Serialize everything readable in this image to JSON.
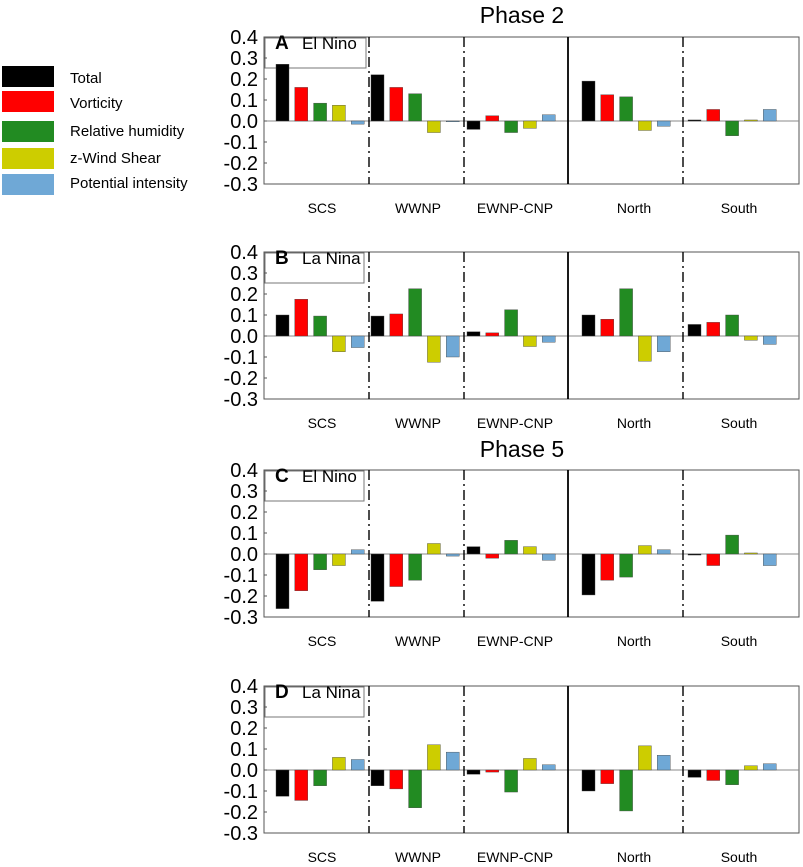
{
  "figure": {
    "phase_titles": [
      "Phase 2",
      "Phase 5"
    ]
  },
  "legend": {
    "items": [
      {
        "label": "Total",
        "color": "#000000"
      },
      {
        "label": "Vorticity",
        "color": "#ff0000"
      },
      {
        "label": "Relative humidity",
        "color": "#228b22"
      },
      {
        "label": "z-Wind Shear",
        "color": "#cdcd00"
      },
      {
        "label": "Potential intensity",
        "color": "#6fa8d6"
      }
    ]
  },
  "chart_data": [
    {
      "type": "bar",
      "panel": "A",
      "title": "El Nino",
      "phase": "Phase 2",
      "categories": [
        "SCS",
        "WWNP",
        "EWNP-CNP",
        "North",
        "South"
      ],
      "ylim": [
        -0.3,
        0.4
      ],
      "yticks": [
        "0.4",
        "0.3",
        "0.2",
        "0.1",
        "0.0",
        "-0.1",
        "-0.2",
        "-0.3"
      ],
      "series": [
        {
          "name": "Total",
          "values": [
            0.27,
            0.22,
            -0.04,
            0.19,
            0.005
          ]
        },
        {
          "name": "Vorticity",
          "values": [
            0.16,
            0.16,
            0.025,
            0.125,
            0.055
          ]
        },
        {
          "name": "Relative humidity",
          "values": [
            0.085,
            0.13,
            -0.055,
            0.115,
            -0.07
          ]
        },
        {
          "name": "z-Wind Shear",
          "values": [
            0.075,
            -0.055,
            -0.035,
            -0.045,
            0.005
          ]
        },
        {
          "name": "Potential intensity",
          "values": [
            -0.015,
            0.0,
            0.03,
            -0.025,
            0.055
          ]
        }
      ]
    },
    {
      "type": "bar",
      "panel": "B",
      "title": "La Nina",
      "phase": "Phase 2",
      "categories": [
        "SCS",
        "WWNP",
        "EWNP-CNP",
        "North",
        "South"
      ],
      "ylim": [
        -0.3,
        0.4
      ],
      "yticks": [
        "0.4",
        "0.3",
        "0.2",
        "0.1",
        "0.0",
        "-0.1",
        "-0.2",
        "-0.3"
      ],
      "series": [
        {
          "name": "Total",
          "values": [
            0.1,
            0.095,
            0.02,
            0.1,
            0.055
          ]
        },
        {
          "name": "Vorticity",
          "values": [
            0.175,
            0.105,
            0.015,
            0.08,
            0.065
          ]
        },
        {
          "name": "Relative humidity",
          "values": [
            0.095,
            0.225,
            0.125,
            0.225,
            0.1
          ]
        },
        {
          "name": "z-Wind Shear",
          "values": [
            -0.075,
            -0.125,
            -0.05,
            -0.12,
            -0.02
          ]
        },
        {
          "name": "Potential intensity",
          "values": [
            -0.055,
            -0.1,
            -0.03,
            -0.075,
            -0.04
          ]
        }
      ]
    },
    {
      "type": "bar",
      "panel": "C",
      "title": "El Nino",
      "phase": "Phase 5",
      "categories": [
        "SCS",
        "WWNP",
        "EWNP-CNP",
        "North",
        "South"
      ],
      "ylim": [
        -0.3,
        0.4
      ],
      "yticks": [
        "0.4",
        "0.3",
        "0.2",
        "0.1",
        "0.0",
        "-0.1",
        "-0.2",
        "-0.3"
      ],
      "series": [
        {
          "name": "Total",
          "values": [
            -0.26,
            -0.225,
            0.035,
            -0.195,
            -0.005
          ]
        },
        {
          "name": "Vorticity",
          "values": [
            -0.175,
            -0.155,
            -0.02,
            -0.125,
            -0.055
          ]
        },
        {
          "name": "Relative humidity",
          "values": [
            -0.075,
            -0.125,
            0.065,
            -0.11,
            0.09
          ]
        },
        {
          "name": "z-Wind Shear",
          "values": [
            -0.055,
            0.05,
            0.035,
            0.04,
            0.005
          ]
        },
        {
          "name": "Potential intensity",
          "values": [
            0.02,
            -0.01,
            -0.03,
            0.02,
            -0.055
          ]
        }
      ]
    },
    {
      "type": "bar",
      "panel": "D",
      "title": "La Nina",
      "phase": "Phase 5",
      "categories": [
        "SCS",
        "WWNP",
        "EWNP-CNP",
        "North",
        "South"
      ],
      "ylim": [
        -0.3,
        0.4
      ],
      "yticks": [
        "0.4",
        "0.3",
        "0.2",
        "0.1",
        "0.0",
        "-0.1",
        "-0.2",
        "-0.3"
      ],
      "series": [
        {
          "name": "Total",
          "values": [
            -0.125,
            -0.075,
            -0.02,
            -0.1,
            -0.035
          ]
        },
        {
          "name": "Vorticity",
          "values": [
            -0.145,
            -0.09,
            -0.01,
            -0.065,
            -0.05
          ]
        },
        {
          "name": "Relative humidity",
          "values": [
            -0.075,
            -0.18,
            -0.105,
            -0.195,
            -0.07
          ]
        },
        {
          "name": "z-Wind Shear",
          "values": [
            0.06,
            0.12,
            0.055,
            0.115,
            0.02
          ]
        },
        {
          "name": "Potential intensity",
          "values": [
            0.05,
            0.085,
            0.025,
            0.07,
            0.03
          ]
        }
      ]
    }
  ]
}
